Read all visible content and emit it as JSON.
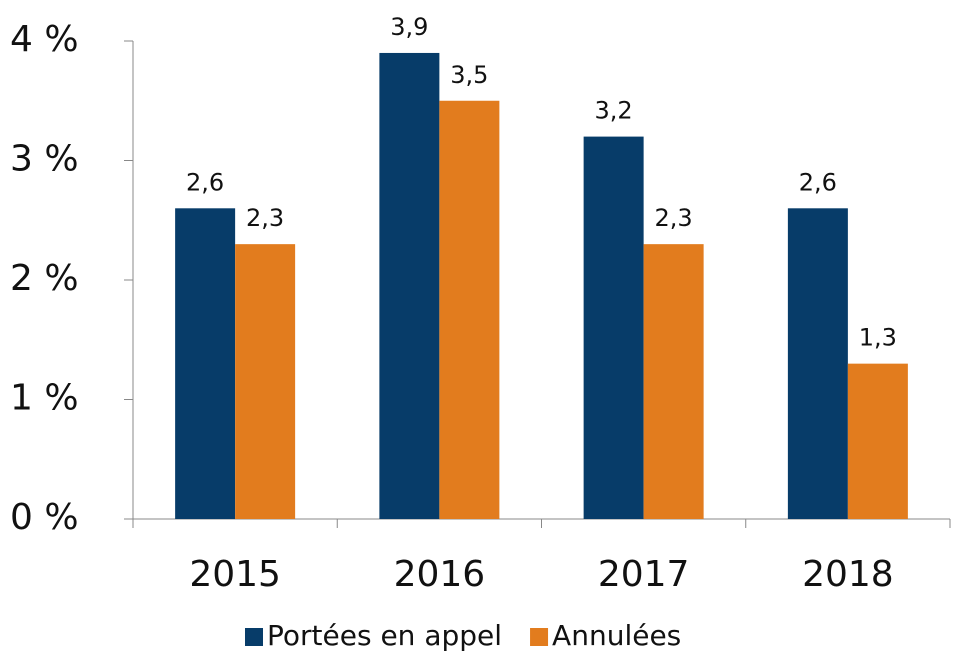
{
  "chart_data": {
    "type": "bar",
    "categories": [
      "2015",
      "2016",
      "2017",
      "2018"
    ],
    "series": [
      {
        "name": "Portées en appel",
        "color": "#073c69",
        "values": [
          2.6,
          3.9,
          3.2,
          2.6
        ],
        "value_labels": [
          "2,6",
          "3,9",
          "3,2",
          "2,6"
        ]
      },
      {
        "name": "Annulées",
        "color": "#e27c1e",
        "values": [
          2.3,
          3.5,
          2.3,
          1.3
        ],
        "value_labels": [
          "2,3",
          "3,5",
          "2,3",
          "1,3"
        ]
      }
    ],
    "ylim": [
      0,
      4
    ],
    "yticks": [
      {
        "value": 0,
        "label": "0 %"
      },
      {
        "value": 1,
        "label": "1 %"
      },
      {
        "value": 2,
        "label": "2 %"
      },
      {
        "value": 3,
        "label": "3 %"
      },
      {
        "value": 4,
        "label": "4 %"
      }
    ],
    "legend": "bottom"
  }
}
